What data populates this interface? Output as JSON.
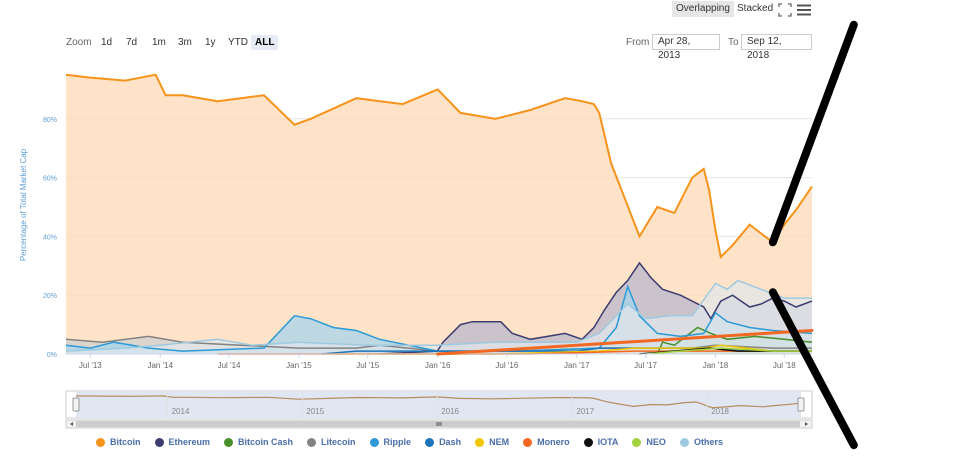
{
  "toolbar": {
    "overlapping": "Overlapping",
    "stacked": "Stacked",
    "fullscreen_icon": "fullscreen-icon",
    "menu_icon": "hamburger-menu-icon"
  },
  "zoom": {
    "label": "Zoom",
    "buttons": [
      "1d",
      "7d",
      "1m",
      "3m",
      "1y",
      "YTD",
      "ALL"
    ],
    "active": "ALL"
  },
  "range": {
    "from_label": "From",
    "from_value": "Apr 28, 2013",
    "to_label": "To",
    "to_value": "Sep 12, 2018"
  },
  "chart_data": {
    "type": "area",
    "ylabel": "Percentage of Total Market Cap",
    "y_ticks": [
      "0%",
      "20%",
      "40%",
      "60%",
      "80%"
    ],
    "ylim": [
      0,
      100
    ],
    "x_ticks": [
      "Jul '13",
      "Jan '14",
      "Jul '14",
      "Jan '15",
      "Jul '15",
      "Jan '16",
      "Jul '16",
      "Jan '17",
      "Jul '17",
      "Jan '18",
      "Jul '18"
    ],
    "navigator_labels": [
      "2014",
      "2015",
      "2016",
      "2017",
      "2018"
    ],
    "grid": true,
    "legend_position": "bottom",
    "series": [
      {
        "name": "Bitcoin",
        "color": "#f7931a",
        "fill": "#fdd9b5",
        "points": [
          [
            "2013-04-28",
            95
          ],
          [
            "2013-07-01",
            94
          ],
          [
            "2013-10-01",
            93
          ],
          [
            "2013-12-20",
            95
          ],
          [
            "2014-01-15",
            88
          ],
          [
            "2014-03-01",
            88
          ],
          [
            "2014-06-01",
            86
          ],
          [
            "2014-08-01",
            87
          ],
          [
            "2014-10-01",
            88
          ],
          [
            "2014-12-20",
            78
          ],
          [
            "2015-02-01",
            80
          ],
          [
            "2015-06-01",
            87
          ],
          [
            "2015-10-01",
            85
          ],
          [
            "2016-01-01",
            90
          ],
          [
            "2016-03-01",
            82
          ],
          [
            "2016-06-01",
            80
          ],
          [
            "2016-09-01",
            83
          ],
          [
            "2016-12-01",
            87
          ],
          [
            "2017-01-15",
            86
          ],
          [
            "2017-02-15",
            85
          ],
          [
            "2017-03-01",
            82
          ],
          [
            "2017-04-01",
            65
          ],
          [
            "2017-05-01",
            55
          ],
          [
            "2017-06-15",
            40
          ],
          [
            "2017-08-01",
            50
          ],
          [
            "2017-09-15",
            48
          ],
          [
            "2017-11-01",
            60
          ],
          [
            "2017-12-01",
            63
          ],
          [
            "2017-12-15",
            56
          ],
          [
            "2018-01-01",
            42
          ],
          [
            "2018-01-15",
            33
          ],
          [
            "2018-02-15",
            37
          ],
          [
            "2018-04-01",
            44
          ],
          [
            "2018-05-01",
            41
          ],
          [
            "2018-06-01",
            38
          ],
          [
            "2018-07-01",
            44
          ],
          [
            "2018-08-01",
            49
          ],
          [
            "2018-09-12",
            57
          ]
        ]
      },
      {
        "name": "Ethereum",
        "color": "#3c3c6e",
        "fill": "#b8b8cc",
        "points": [
          [
            "2015-08-01",
            0
          ],
          [
            "2015-12-31",
            1
          ],
          [
            "2016-01-15",
            4
          ],
          [
            "2016-03-01",
            10
          ],
          [
            "2016-04-01",
            11
          ],
          [
            "2016-06-15",
            11
          ],
          [
            "2016-07-15",
            7
          ],
          [
            "2016-09-01",
            5
          ],
          [
            "2016-12-01",
            7
          ],
          [
            "2017-01-15",
            5
          ],
          [
            "2017-02-15",
            9
          ],
          [
            "2017-03-15",
            15
          ],
          [
            "2017-04-15",
            21
          ],
          [
            "2017-05-15",
            25
          ],
          [
            "2017-06-15",
            31
          ],
          [
            "2017-07-15",
            26
          ],
          [
            "2017-08-15",
            22
          ],
          [
            "2017-10-01",
            20
          ],
          [
            "2017-12-01",
            16
          ],
          [
            "2017-12-20",
            12
          ],
          [
            "2018-01-15",
            18
          ],
          [
            "2018-02-15",
            20
          ],
          [
            "2018-04-01",
            16
          ],
          [
            "2018-05-01",
            17
          ],
          [
            "2018-06-01",
            19
          ],
          [
            "2018-07-01",
            18
          ],
          [
            "2018-08-01",
            16
          ],
          [
            "2018-09-12",
            18
          ]
        ]
      },
      {
        "name": "Bitcoin Cash",
        "color": "#478f29",
        "fill": "#9ac98a",
        "points": [
          [
            "2017-08-01",
            0
          ],
          [
            "2017-08-15",
            4
          ],
          [
            "2017-09-15",
            3
          ],
          [
            "2017-11-15",
            9
          ],
          [
            "2017-12-20",
            7
          ],
          [
            "2018-02-01",
            5
          ],
          [
            "2018-04-15",
            6
          ],
          [
            "2018-07-01",
            5
          ],
          [
            "2018-09-12",
            4
          ]
        ]
      },
      {
        "name": "Litecoin",
        "color": "#838383",
        "fill": "#d0d0d0",
        "points": [
          [
            "2013-04-28",
            5
          ],
          [
            "2013-08-01",
            4
          ],
          [
            "2013-12-01",
            6
          ],
          [
            "2014-03-01",
            4
          ],
          [
            "2014-08-01",
            3
          ],
          [
            "2015-01-01",
            2
          ],
          [
            "2015-06-01",
            2
          ],
          [
            "2015-08-01",
            3
          ],
          [
            "2016-01-01",
            1
          ],
          [
            "2016-08-01",
            1
          ],
          [
            "2017-03-01",
            2
          ],
          [
            "2017-06-01",
            2
          ],
          [
            "2017-11-01",
            2
          ],
          [
            "2018-01-01",
            3
          ],
          [
            "2018-06-01",
            2
          ],
          [
            "2018-09-12",
            2
          ]
        ]
      },
      {
        "name": "Ripple",
        "color": "#2b9ad6",
        "fill": "#a7d4ec",
        "points": [
          [
            "2013-04-28",
            3
          ],
          [
            "2013-07-01",
            2
          ],
          [
            "2013-09-01",
            4
          ],
          [
            "2013-12-01",
            2
          ],
          [
            "2014-03-01",
            1
          ],
          [
            "2014-10-01",
            2
          ],
          [
            "2014-12-20",
            13
          ],
          [
            "2015-02-01",
            12
          ],
          [
            "2015-04-01",
            9
          ],
          [
            "2015-06-01",
            8
          ],
          [
            "2015-08-01",
            5
          ],
          [
            "2016-01-01",
            1
          ],
          [
            "2016-08-01",
            1
          ],
          [
            "2017-03-01",
            2
          ],
          [
            "2017-04-15",
            9
          ],
          [
            "2017-05-15",
            23
          ],
          [
            "2017-06-15",
            13
          ],
          [
            "2017-08-01",
            7
          ],
          [
            "2017-10-01",
            6
          ],
          [
            "2017-12-01",
            7
          ],
          [
            "2018-01-01",
            14
          ],
          [
            "2018-02-01",
            11
          ],
          [
            "2018-04-01",
            9
          ],
          [
            "2018-06-01",
            8
          ],
          [
            "2018-09-12",
            7
          ]
        ]
      },
      {
        "name": "Dash",
        "color": "#1c75bc",
        "fill": "#9cc2e2",
        "points": [
          [
            "2015-03-01",
            0
          ],
          [
            "2015-06-01",
            1
          ],
          [
            "2016-01-01",
            1
          ],
          [
            "2016-06-01",
            1
          ],
          [
            "2017-01-01",
            1
          ],
          [
            "2017-03-01",
            2
          ],
          [
            "2017-06-01",
            2
          ],
          [
            "2017-12-01",
            2
          ],
          [
            "2018-06-01",
            1
          ],
          [
            "2018-09-12",
            1
          ]
        ]
      },
      {
        "name": "NEM",
        "color": "#f2c600",
        "fill": "#f8e27f",
        "points": [
          [
            "2015-04-01",
            0
          ],
          [
            "2016-06-01",
            0
          ],
          [
            "2017-03-01",
            1
          ],
          [
            "2017-06-01",
            2
          ],
          [
            "2017-12-01",
            2
          ],
          [
            "2018-01-15",
            3
          ],
          [
            "2018-06-01",
            1
          ],
          [
            "2018-09-12",
            1
          ]
        ]
      },
      {
        "name": "Monero",
        "color": "#f26822",
        "fill": "#f9b891",
        "points": [
          [
            "2014-06-01",
            0
          ],
          [
            "2016-01-01",
            0
          ],
          [
            "2016-09-01",
            0
          ],
          [
            "2017-06-01",
            1
          ],
          [
            "2018-01-01",
            1
          ],
          [
            "2018-09-12",
            1
          ]
        ]
      },
      {
        "name": "IOTA",
        "color": "#111111",
        "fill": "#888888",
        "points": [
          [
            "2017-06-15",
            0
          ],
          [
            "2017-12-15",
            2
          ],
          [
            "2018-03-01",
            1
          ],
          [
            "2018-09-12",
            1
          ]
        ]
      },
      {
        "name": "NEO",
        "color": "#a2d23c",
        "fill": "#d2ec9d",
        "points": [
          [
            "2017-07-01",
            0
          ],
          [
            "2017-10-01",
            1
          ],
          [
            "2018-01-15",
            2
          ],
          [
            "2018-06-01",
            1
          ],
          [
            "2018-09-12",
            1
          ]
        ]
      },
      {
        "name": "Others",
        "color": "#9ecae1",
        "fill": "#e2e6ea",
        "points": [
          [
            "2013-04-28",
            1
          ],
          [
            "2013-10-01",
            2
          ],
          [
            "2014-01-01",
            3
          ],
          [
            "2014-06-01",
            5
          ],
          [
            "2014-09-01",
            3
          ],
          [
            "2015-01-01",
            4
          ],
          [
            "2015-07-01",
            3
          ],
          [
            "2016-01-01",
            3
          ],
          [
            "2016-06-01",
            4
          ],
          [
            "2017-01-01",
            4
          ],
          [
            "2017-03-01",
            7
          ],
          [
            "2017-05-15",
            17
          ],
          [
            "2017-07-01",
            12
          ],
          [
            "2017-09-01",
            13
          ],
          [
            "2017-11-01",
            13
          ],
          [
            "2018-01-01",
            24
          ],
          [
            "2018-02-01",
            22
          ],
          [
            "2018-03-01",
            25
          ],
          [
            "2018-05-01",
            22
          ],
          [
            "2018-07-01",
            19
          ],
          [
            "2018-09-12",
            19
          ]
        ]
      }
    ],
    "annotations": [
      {
        "type": "line",
        "color": "#f26822",
        "points": [
          [
            "2016-01-01",
            0
          ],
          [
            "2018-09-12",
            8
          ]
        ]
      },
      {
        "type": "line",
        "color": "#000000",
        "points": [
          [
            "2018-06-01",
            38
          ],
          [
            "2018-12-31",
            112
          ]
        ]
      },
      {
        "type": "line",
        "color": "#000000",
        "points": [
          [
            "2018-06-01",
            21
          ],
          [
            "2018-12-31",
            -31
          ]
        ]
      }
    ]
  },
  "legend": [
    {
      "name": "Bitcoin",
      "color": "#f7931a"
    },
    {
      "name": "Ethereum",
      "color": "#3c3c6e"
    },
    {
      "name": "Bitcoin Cash",
      "color": "#478f29"
    },
    {
      "name": "Litecoin",
      "color": "#838383"
    },
    {
      "name": "Ripple",
      "color": "#2b9ad6"
    },
    {
      "name": "Dash",
      "color": "#1c75bc"
    },
    {
      "name": "NEM",
      "color": "#f2c600"
    },
    {
      "name": "Monero",
      "color": "#f26822"
    },
    {
      "name": "IOTA",
      "color": "#111111"
    },
    {
      "name": "NEO",
      "color": "#a2d23c"
    },
    {
      "name": "Others",
      "color": "#9ecae1"
    }
  ]
}
